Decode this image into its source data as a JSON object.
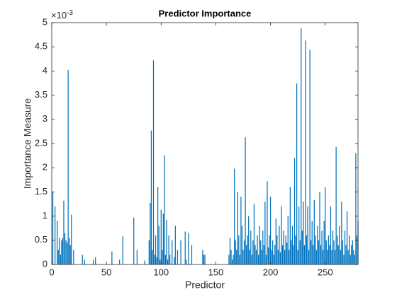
{
  "chart_data": {
    "type": "bar",
    "title": "Predictor Importance",
    "x_label": "Predictor",
    "y_label": "Importance Measure",
    "y_exponent": {
      "base": "×10",
      "power": "-3"
    },
    "color": "#0072BD",
    "xlim": [
      0,
      280
    ],
    "xticks": [
      0,
      50,
      100,
      150,
      200,
      250
    ],
    "ylim": [
      0,
      5
    ],
    "yticks": [
      0,
      0.5,
      1,
      1.5,
      2,
      2.5,
      3,
      3.5,
      4,
      4.5,
      5
    ],
    "x": [
      1,
      2,
      3,
      4,
      5,
      6,
      7,
      8,
      9,
      10,
      11,
      12,
      13,
      14,
      15,
      16,
      17,
      18,
      19,
      20,
      21,
      22,
      23,
      24,
      25,
      26,
      27,
      28,
      29,
      30,
      31,
      32,
      33,
      34,
      35,
      36,
      37,
      38,
      39,
      40,
      41,
      42,
      43,
      44,
      45,
      46,
      47,
      48,
      49,
      50,
      51,
      52,
      53,
      54,
      55,
      56,
      57,
      58,
      59,
      60,
      61,
      62,
      63,
      64,
      65,
      66,
      67,
      68,
      69,
      70,
      71,
      72,
      73,
      74,
      75,
      76,
      77,
      78,
      79,
      80,
      81,
      82,
      83,
      84,
      85,
      86,
      87,
      88,
      89,
      90,
      91,
      92,
      93,
      94,
      95,
      96,
      97,
      98,
      99,
      100,
      101,
      102,
      103,
      104,
      105,
      106,
      107,
      108,
      109,
      110,
      111,
      112,
      113,
      114,
      115,
      116,
      117,
      118,
      119,
      120,
      121,
      122,
      123,
      124,
      125,
      126,
      127,
      128,
      129,
      130,
      131,
      132,
      133,
      134,
      135,
      136,
      137,
      138,
      139,
      140,
      141,
      142,
      143,
      144,
      145,
      146,
      147,
      148,
      149,
      150,
      151,
      152,
      153,
      154,
      155,
      156,
      157,
      158,
      159,
      160,
      161,
      162,
      163,
      164,
      165,
      166,
      167,
      168,
      169,
      170,
      171,
      172,
      173,
      174,
      175,
      176,
      177,
      178,
      179,
      180,
      181,
      182,
      183,
      184,
      185,
      186,
      187,
      188,
      189,
      190,
      191,
      192,
      193,
      194,
      195,
      196,
      197,
      198,
      199,
      200,
      201,
      202,
      203,
      204,
      205,
      206,
      207,
      208,
      209,
      210,
      211,
      212,
      213,
      214,
      215,
      216,
      217,
      218,
      219,
      220,
      221,
      222,
      223,
      224,
      225,
      226,
      227,
      228,
      229,
      230,
      231,
      232,
      233,
      234,
      235,
      236,
      237,
      238,
      239,
      240,
      241,
      242,
      243,
      244,
      245,
      246,
      247,
      248,
      249,
      250,
      251,
      252,
      253,
      254,
      255,
      256,
      257,
      258,
      259,
      260,
      261,
      262,
      263,
      264,
      265,
      266,
      267,
      268,
      269,
      270,
      271,
      272,
      273,
      274,
      275,
      276,
      277,
      278,
      279,
      280
    ],
    "values": [
      1.5,
      0,
      1.2,
      0,
      0.9,
      0.3,
      0.55,
      0.2,
      0.5,
      0.55,
      1.32,
      0.65,
      0.5,
      0.45,
      4.02,
      0.55,
      0.4,
      1.03,
      0,
      0.3,
      0,
      0,
      0,
      0,
      0,
      0,
      0,
      0.2,
      0,
      0.1,
      0,
      0,
      0,
      0,
      0,
      0,
      0,
      0.1,
      0,
      0.15,
      0,
      0,
      0,
      0,
      0,
      0,
      0,
      0,
      0,
      0,
      0,
      0,
      0,
      0,
      0.27,
      0,
      0,
      0,
      0,
      0,
      0,
      0.1,
      0,
      0,
      0.58,
      0,
      0,
      0,
      0,
      0,
      0,
      0,
      0,
      0,
      0.97,
      0,
      0,
      0.3,
      0,
      0,
      0,
      0,
      0,
      0,
      0.08,
      0,
      0,
      0,
      0.5,
      1.27,
      2.77,
      0.3,
      4.22,
      0.2,
      0.6,
      0.15,
      1.6,
      0.8,
      0.1,
      1.13,
      0.3,
      1.05,
      2.26,
      0.2,
      0.92,
      0.1,
      0.6,
      0.2,
      0,
      0.5,
      0,
      0.15,
      0.8,
      0,
      0.3,
      0,
      0,
      0.5,
      0,
      0,
      0,
      0.68,
      0.1,
      0,
      0.65,
      0,
      0,
      0.4,
      0,
      0,
      0,
      0,
      0,
      0,
      0,
      0,
      0,
      0.3,
      0.2,
      0.2,
      0,
      0,
      0,
      0,
      0,
      0,
      0,
      0,
      0,
      0,
      0,
      0,
      0,
      0,
      0,
      0,
      0,
      0,
      0,
      0,
      0,
      0.2,
      0.55,
      0.3,
      0.1,
      0.2,
      1.98,
      0.5,
      0.3,
      1.5,
      0.6,
      0.2,
      1.4,
      0.8,
      0.3,
      0.5,
      2.63,
      0.4,
      0.6,
      1.0,
      0.3,
      0.7,
      0.2,
      0.5,
      1.25,
      0.4,
      0.3,
      0.6,
      0.2,
      0.8,
      0.5,
      0.3,
      0.7,
      0.4,
      1.3,
      0.2,
      1.72,
      0.35,
      0.6,
      1.4,
      0.3,
      0.5,
      0.2,
      0.4,
      0.95,
      0.6,
      0.3,
      0.8,
      0.25,
      1.2,
      0.4,
      0.7,
      0.3,
      0.6,
      0.45,
      1.0,
      0.3,
      1.6,
      0.5,
      0.8,
      0.4,
      2.2,
      0.6,
      3.74,
      0.3,
      1.2,
      0.5,
      4.88,
      0.7,
      1.3,
      0.4,
      4.63,
      0.6,
      1.2,
      0.3,
      4.44,
      0.5,
      0.9,
      0.4,
      1.33,
      0.6,
      0.3,
      0.8,
      0.5,
      1.5,
      0.4,
      0.7,
      0.3,
      0.9,
      1.6,
      0.5,
      0.3,
      0.6,
      0.4,
      1.2,
      0.3,
      0.7,
      0.5,
      0.3,
      2.43,
      0.6,
      0.4,
      0.8,
      0.3,
      1.3,
      0.5,
      0.2,
      0.7,
      0.4,
      1.1,
      0.3,
      0.6,
      0.2,
      0.4,
      0.5,
      0.3,
      0.2,
      2.3,
      0.6,
      0.9
    ]
  }
}
